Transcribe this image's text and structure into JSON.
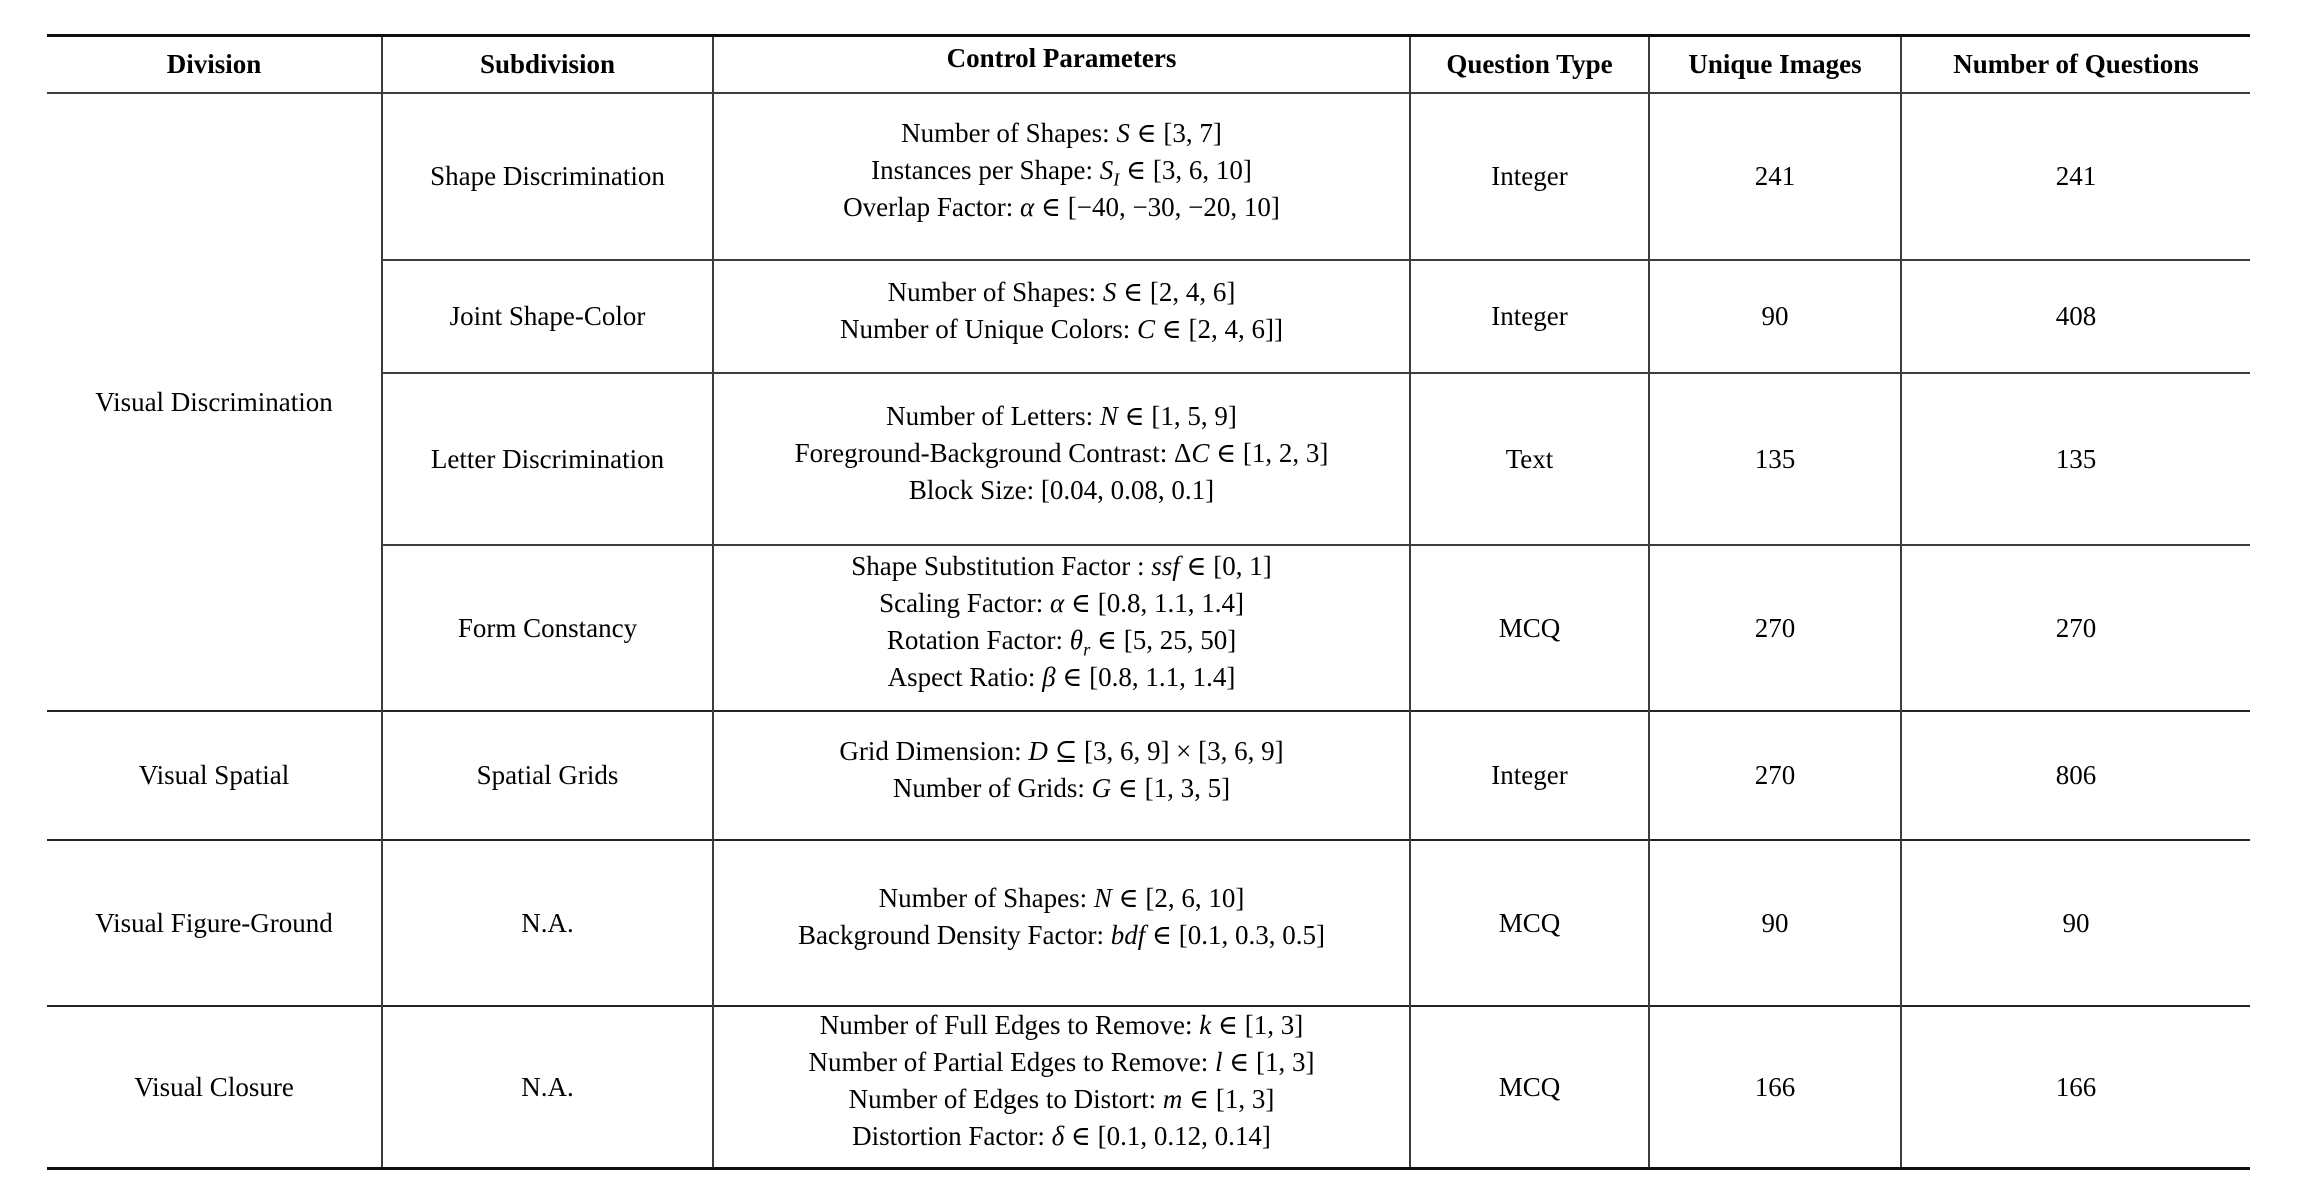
{
  "table": {
    "headers": [
      "Division",
      "Subdivision",
      "Control Parameters",
      "Question Type",
      "Unique Images",
      "Number of Questions"
    ],
    "groups": [
      {
        "division": "Visual Discrimination",
        "rows": [
          {
            "subdivision": "Shape Discrimination",
            "control_parameters": [
              "Number of Shapes: S ∈ [3, 7]",
              "Instances per Shape: S_I ∈ [3, 6, 10]",
              "Overlap Factor: α ∈ [−40, −30, −20, 10]"
            ],
            "question_type": "Integer",
            "unique_images": "241",
            "number_of_questions": "241"
          },
          {
            "subdivision": "Joint Shape-Color",
            "control_parameters": [
              "Number of Shapes: S ∈ [2, 4, 6]",
              "Number of Unique Colors: C ∈ [2, 4, 6]]"
            ],
            "question_type": "Integer",
            "unique_images": "90",
            "number_of_questions": "408"
          },
          {
            "subdivision": "Letter Discrimination",
            "control_parameters": [
              "Number of Letters: N ∈ [1, 5, 9]",
              "Foreground-Background Contrast: ΔC ∈ [1, 2, 3]",
              "Block Size: [0.04, 0.08, 0.1]"
            ],
            "question_type": "Text",
            "unique_images": "135",
            "number_of_questions": "135"
          },
          {
            "subdivision": "Form Constancy",
            "control_parameters": [
              "Shape Substitution Factor : ssf ∈ [0, 1]",
              "Scaling Factor: α ∈ [0.8, 1.1, 1.4]",
              "Rotation Factor: θ_r ∈ [5, 25, 50]",
              "Aspect Ratio: β ∈ [0.8, 1.1, 1.4]"
            ],
            "question_type": "MCQ",
            "unique_images": "270",
            "number_of_questions": "270"
          }
        ]
      },
      {
        "division": "Visual Spatial",
        "rows": [
          {
            "subdivision": "Spatial Grids",
            "control_parameters": [
              "Grid Dimension: D ⊆ [3, 6, 9] × [3, 6, 9]",
              "Number of Grids: G ∈ [1, 3, 5]"
            ],
            "question_type": "Integer",
            "unique_images": "270",
            "number_of_questions": "806"
          }
        ]
      },
      {
        "division": "Visual Figure-Ground",
        "rows": [
          {
            "subdivision": "N.A.",
            "control_parameters": [
              "Number of Shapes: N ∈ [2, 6, 10]",
              "Background Density Factor: bdf ∈ [0.1, 0.3, 0.5]"
            ],
            "question_type": "MCQ",
            "unique_images": "90",
            "number_of_questions": "90"
          }
        ]
      },
      {
        "division": "Visual Closure",
        "rows": [
          {
            "subdivision": "N.A.",
            "control_parameters": [
              "Number of Full Edges to Remove: k ∈ [1, 3]",
              "Number of Partial Edges to Remove: l ∈ [1, 3]",
              "Number of Edges to Distort: m ∈ [1, 3]",
              "Distortion Factor: δ ∈ [0.1, 0.12, 0.14]"
            ],
            "question_type": "MCQ",
            "unique_images": "166",
            "number_of_questions": "166"
          }
        ]
      }
    ]
  }
}
